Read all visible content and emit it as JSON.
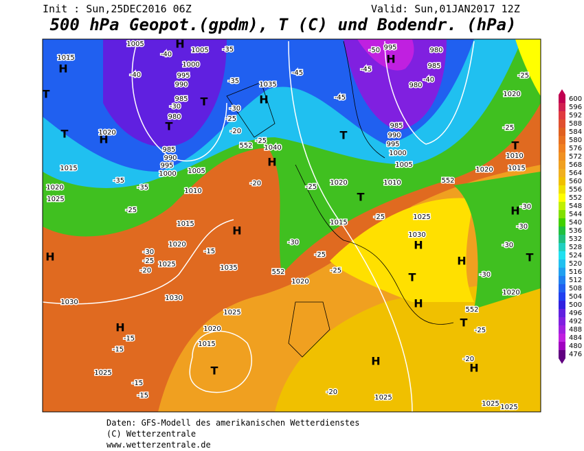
{
  "header": {
    "init": "Init : Sun,25DEC2016 06Z",
    "valid": "Valid: Sun,01JAN2017 12Z",
    "title": "500 hPa Geopot.(gpdm), T (C) und Bodendr. (hPa)"
  },
  "footer": {
    "lines": [
      "Daten: GFS-Modell des amerikanischen Wetterdienstes",
      "(C) Wetterzentrale",
      "www.wetterzentrale.de"
    ]
  },
  "colorbar": {
    "levels": [
      600,
      596,
      592,
      588,
      584,
      580,
      576,
      572,
      568,
      564,
      560,
      556,
      552,
      548,
      544,
      540,
      536,
      532,
      528,
      524,
      520,
      516,
      512,
      508,
      504,
      500,
      496,
      492,
      488,
      484,
      480,
      476
    ],
    "colors": [
      "#c00050",
      "#d02050",
      "#e03a40",
      "#e05030",
      "#e06020",
      "#e87020",
      "#f08020",
      "#f09020",
      "#f0a020",
      "#f0b020",
      "#f0c000",
      "#f0e000",
      "#ffff00",
      "#c0f000",
      "#80e000",
      "#40d000",
      "#20c040",
      "#20c080",
      "#20d0c0",
      "#20e0f0",
      "#20c0f0",
      "#20a0f0",
      "#2080f0",
      "#2060f0",
      "#2040f0",
      "#3020e0",
      "#6020e0",
      "#8020e0",
      "#a020e0",
      "#c020e0",
      "#a000c0",
      "#600080"
    ]
  },
  "map": {
    "centers": [
      "H",
      "H",
      "T",
      "T",
      "H",
      "T",
      "T",
      "H",
      "H",
      "H",
      "H",
      "H",
      "T",
      "H",
      "T",
      "H",
      "H",
      "T",
      "H",
      "T",
      "H",
      "H",
      "T",
      "H",
      "T",
      "T"
    ],
    "labels": [
      "1005",
      "1005",
      "1000",
      "995",
      "990",
      "985",
      "980",
      "985",
      "990",
      "995",
      "1000",
      "1005",
      "1010",
      "1015",
      "1020",
      "1025",
      "1030",
      "1035",
      "1025",
      "1020",
      "1015",
      "1025",
      "1030",
      "1015",
      "1020",
      "1015",
      "1020",
      "1025",
      "1035",
      "1040",
      "995",
      "980",
      "985",
      "980",
      "985",
      "990",
      "995",
      "1000",
      "1005",
      "1010",
      "1020",
      "1015",
      "1020",
      "1025",
      "1030",
      "1020",
      "1015",
      "1010",
      "1020",
      "1020",
      "1025",
      "1025",
      "1025",
      "-40",
      "-40",
      "-35",
      "-35",
      "-30",
      "-25",
      "-20",
      "-30",
      "-25",
      "-20",
      "-35",
      "-35",
      "-25",
      "-30",
      "-25",
      "-20",
      "-15",
      "-45",
      "-45",
      "-50",
      "-45",
      "-40",
      "-25",
      "-30",
      "-25",
      "-25",
      "-25",
      "-25",
      "-30",
      "-30",
      "-30",
      "-30",
      "-25",
      "-20",
      "-20",
      "-15",
      "-15",
      "-15",
      "-15",
      "-25",
      "552",
      "552",
      "552",
      "552"
    ]
  }
}
